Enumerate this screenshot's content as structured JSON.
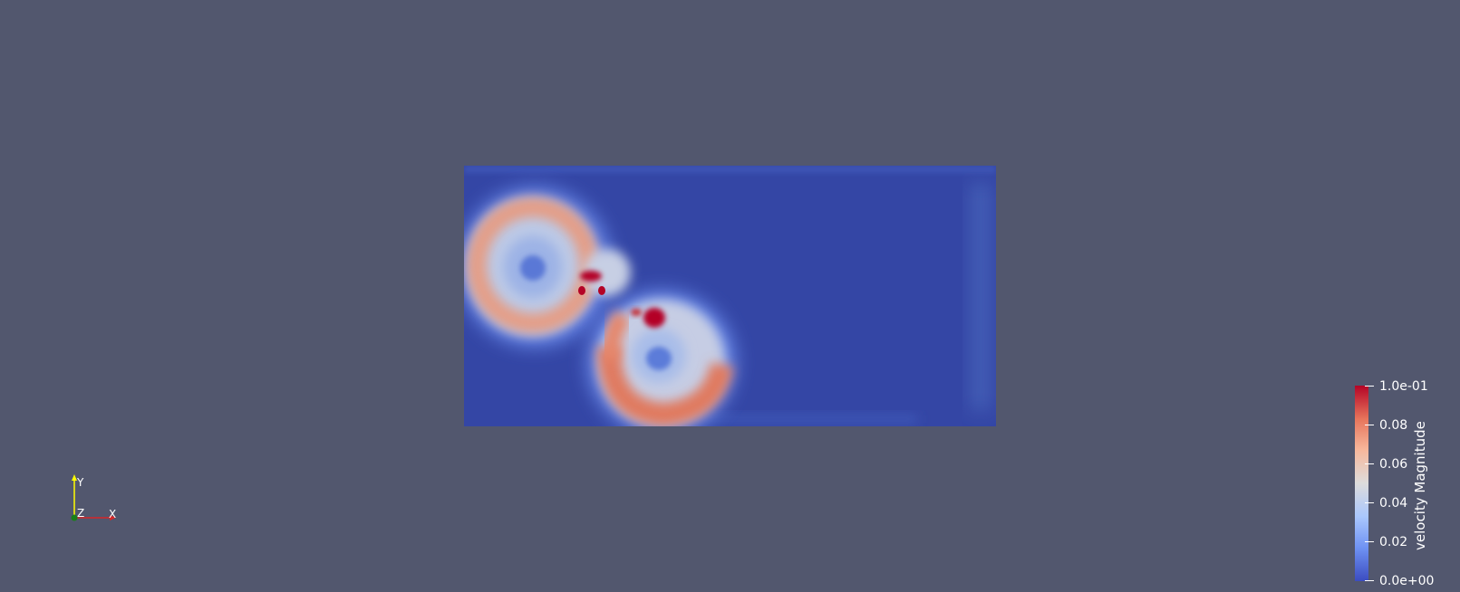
{
  "scene": {
    "background_color": "#52576e",
    "field_variable": "velocity Magnitude",
    "colormap": "Cool to Warm"
  },
  "axes_triad": {
    "x_label": "X",
    "y_label": "Y",
    "z_label": "Z",
    "x_color": "#d62728",
    "y_color": "#ffff00",
    "z_color": "#1a7f1a"
  },
  "legend": {
    "title": "velocity Magnitude",
    "ticks": [
      {
        "label": "1.0e-01",
        "value": 0.1
      },
      {
        "label": "0.08",
        "value": 0.08
      },
      {
        "label": "0.06",
        "value": 0.06
      },
      {
        "label": "0.04",
        "value": 0.04
      },
      {
        "label": "0.02",
        "value": 0.02
      },
      {
        "label": "0.0e+00",
        "value": 0.0
      }
    ],
    "min": 0.0,
    "max": 0.1
  }
}
